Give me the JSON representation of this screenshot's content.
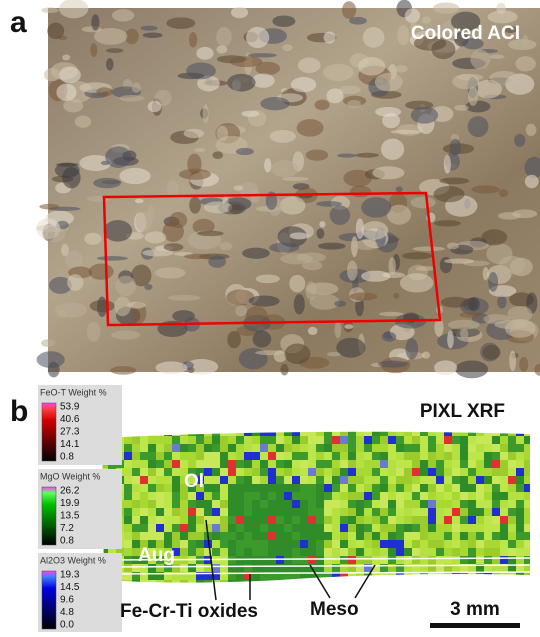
{
  "panel_a": {
    "label": "a",
    "title": "Colored ACI"
  },
  "panel_b": {
    "label": "b",
    "title": "PIXL XRF",
    "colorbars": [
      {
        "title": "FeO-T Weight %",
        "ticks": [
          "53.9",
          "40.6",
          "27.3",
          "14.1",
          "0.8"
        ]
      },
      {
        "title": "MgO Weight %",
        "ticks": [
          "26.2",
          "19.9",
          "13.5",
          "7.2",
          "0.8"
        ]
      },
      {
        "title": "Al2O3 Weight %",
        "ticks": [
          "19.3",
          "14.5",
          "9.6",
          "4.8",
          "0.0"
        ]
      }
    ],
    "annotations": {
      "olivine": "Ol",
      "augite": "Aug",
      "oxides": "Fe-Cr-Ti oxides",
      "mesostasis": "Meso"
    },
    "scale_bar": "3 mm"
  }
}
